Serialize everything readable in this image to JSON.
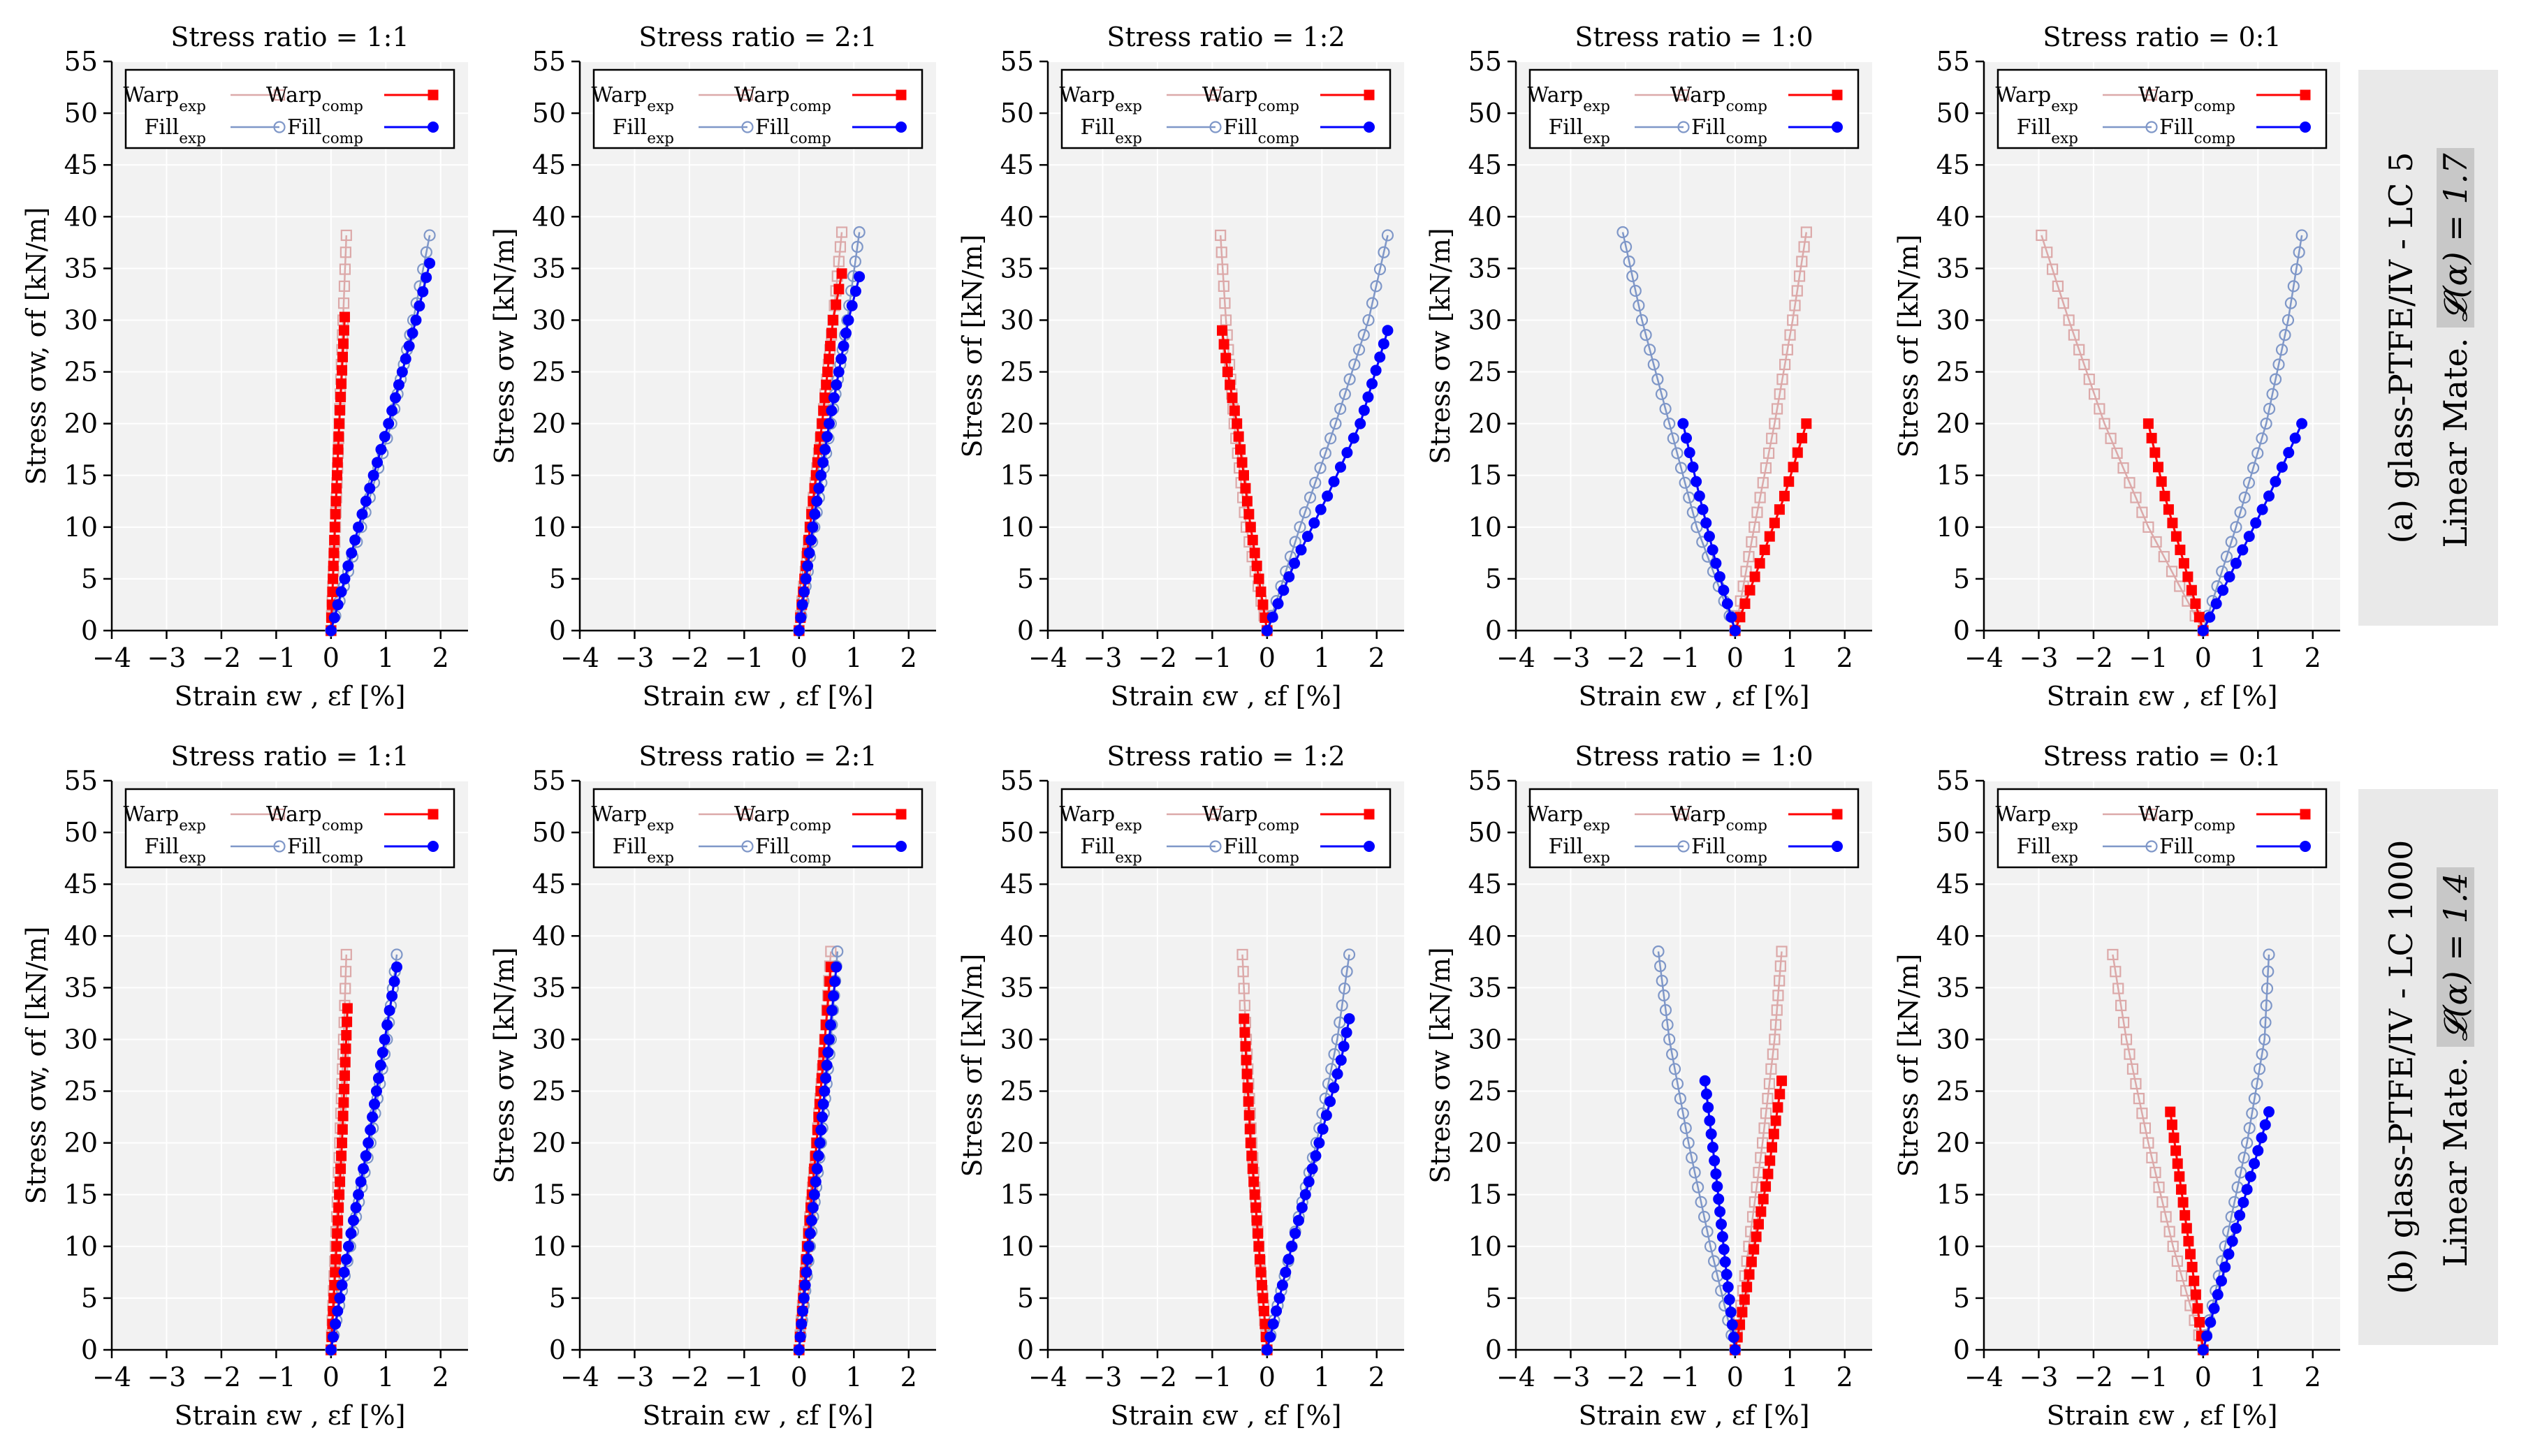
{
  "rows": [
    {
      "label_tag": "(a)",
      "label_material": "glass-PTFE/IV - LC 5",
      "label_model": "Linear Mate.",
      "label_metric": "𝓛(α) = 1.7",
      "label_line1": "(a) glass-PTFE/IV - LC 5",
      "ylabel_first": "Stress σw, σf [kN/m]"
    },
    {
      "label_tag": "(b)",
      "label_material": "glass-PTFE/IV - LC 1000",
      "label_model": "Linear Mate.",
      "label_metric": "𝓛(α) = 1.4",
      "label_line1": "(b) glass-PTFE/IV - LC 1000",
      "ylabel_first": "Stress σw, σf [kN/m]"
    }
  ],
  "legend": {
    "warp_exp": "Warp",
    "warp_exp_sub": "exp",
    "fill_exp": "Fill",
    "fill_exp_sub": "exp",
    "warp_comp": "Warp",
    "warp_comp_sub": "comp",
    "fill_comp": "Fill",
    "fill_comp_sub": "comp"
  },
  "colors": {
    "warp_exp": "#dca9a9",
    "fill_exp": "#7f97c8",
    "warp_comp": "#ff0000",
    "fill_comp": "#0000ff",
    "plot_bg": "#f2f2f2",
    "grid": "#ffffff"
  },
  "axes": {
    "xlim": [
      -4,
      2.5
    ],
    "ylim": [
      0,
      55
    ],
    "xticks": [
      -4,
      -3,
      -2,
      -1,
      0,
      1,
      2
    ],
    "yticks": [
      0,
      5,
      10,
      15,
      20,
      25,
      30,
      35,
      40,
      45,
      50,
      55
    ],
    "xlabel": "Strain εw , εf [%]",
    "grid": true,
    "legend_position": "top"
  },
  "chart_data": [
    {
      "type": "line",
      "row": 0,
      "col": 0,
      "title": "Stress ratio = 1:1",
      "ylabel": "Stress σw, σf [kN/m]",
      "series": [
        {
          "name": "Warp_exp",
          "x": [
            0,
            0.08,
            0.15,
            0.22,
            0.28
          ],
          "y": [
            0,
            10,
            20,
            30,
            38.2
          ]
        },
        {
          "name": "Fill_exp",
          "x": [
            0,
            0.55,
            1.1,
            1.5,
            1.8
          ],
          "y": [
            0,
            10,
            20,
            30,
            38.2
          ]
        },
        {
          "name": "Warp_comp",
          "x": [
            0,
            0.07,
            0.15,
            0.25
          ],
          "y": [
            0,
            10,
            20,
            30.3
          ]
        },
        {
          "name": "Fill_comp",
          "x": [
            0,
            0.5,
            1.05,
            1.55,
            1.8
          ],
          "y": [
            0,
            10,
            20,
            30,
            35.5
          ]
        }
      ]
    },
    {
      "type": "line",
      "row": 0,
      "col": 1,
      "title": "Stress ratio = 2:1",
      "ylabel": "Stress σw [kN/m]",
      "series": [
        {
          "name": "Warp_exp",
          "x": [
            0,
            0.2,
            0.42,
            0.62,
            0.78
          ],
          "y": [
            0,
            10,
            20,
            30,
            38.5
          ]
        },
        {
          "name": "Fill_exp",
          "x": [
            0,
            0.28,
            0.58,
            0.88,
            1.1
          ],
          "y": [
            0,
            10,
            20,
            30,
            38.5
          ]
        },
        {
          "name": "Warp_comp",
          "x": [
            0,
            0.2,
            0.42,
            0.62,
            0.78
          ],
          "y": [
            0,
            10,
            20,
            30,
            34.5
          ]
        },
        {
          "name": "Fill_comp",
          "x": [
            0,
            0.25,
            0.55,
            0.9,
            1.1
          ],
          "y": [
            0,
            10,
            20,
            30,
            34.2
          ]
        }
      ]
    },
    {
      "type": "line",
      "row": 0,
      "col": 2,
      "title": "Stress ratio = 1:2",
      "ylabel": "Stress σf [kN/m]",
      "series": [
        {
          "name": "Warp_exp",
          "x": [
            0,
            -0.38,
            -0.6,
            -0.75,
            -0.85
          ],
          "y": [
            0,
            10,
            20,
            30,
            38.2
          ]
        },
        {
          "name": "Fill_exp",
          "x": [
            0,
            0.6,
            1.25,
            1.85,
            2.2
          ],
          "y": [
            0,
            10,
            20,
            30,
            38.2
          ]
        },
        {
          "name": "Warp_comp",
          "x": [
            0,
            -0.3,
            -0.55,
            -0.72,
            -0.82
          ],
          "y": [
            0,
            10,
            20,
            25,
            29
          ]
        },
        {
          "name": "Fill_comp",
          "x": [
            0,
            0.5,
            1.1,
            1.7,
            2.2
          ],
          "y": [
            0,
            6.5,
            13,
            20,
            29
          ]
        }
      ]
    },
    {
      "type": "line",
      "row": 0,
      "col": 3,
      "title": "Stress ratio = 1:0",
      "ylabel": "Stress σw [kN/m]",
      "series": [
        {
          "name": "Warp_exp",
          "x": [
            0,
            0.35,
            0.72,
            1.05,
            1.3
          ],
          "y": [
            0,
            10,
            20,
            30,
            38.5
          ]
        },
        {
          "name": "Fill_exp",
          "x": [
            0,
            -0.7,
            -1.2,
            -1.7,
            -2.05
          ],
          "y": [
            0,
            10,
            20,
            30,
            38.5
          ]
        },
        {
          "name": "Warp_comp",
          "x": [
            0,
            0.45,
            0.9,
            1.3
          ],
          "y": [
            0,
            6.5,
            13,
            20
          ]
        },
        {
          "name": "Fill_comp",
          "x": [
            0,
            -0.35,
            -0.65,
            -0.95
          ],
          "y": [
            0,
            6.5,
            13,
            20
          ]
        }
      ]
    },
    {
      "type": "line",
      "row": 0,
      "col": 4,
      "title": "Stress ratio = 0:1",
      "ylabel": "Stress σf [kN/m]",
      "series": [
        {
          "name": "Warp_exp",
          "x": [
            0,
            -1.0,
            -1.8,
            -2.45,
            -2.95
          ],
          "y": [
            0,
            10,
            20,
            30,
            38.2
          ]
        },
        {
          "name": "Fill_exp",
          "x": [
            0,
            0.6,
            1.15,
            1.55,
            1.8
          ],
          "y": [
            0,
            10,
            20,
            30,
            38.2
          ]
        },
        {
          "name": "Warp_comp",
          "x": [
            0,
            -0.35,
            -0.7,
            -1.0
          ],
          "y": [
            0,
            6.5,
            13,
            20
          ]
        },
        {
          "name": "Fill_comp",
          "x": [
            0,
            0.6,
            1.2,
            1.8
          ],
          "y": [
            0,
            6.5,
            13,
            20
          ]
        }
      ]
    },
    {
      "type": "line",
      "row": 1,
      "col": 0,
      "title": "Stress ratio = 1:1",
      "ylabel": "Stress σw, σf [kN/m]",
      "series": [
        {
          "name": "Warp_exp",
          "x": [
            0,
            0.08,
            0.16,
            0.23,
            0.28
          ],
          "y": [
            0,
            10,
            20,
            30,
            38.2
          ]
        },
        {
          "name": "Fill_exp",
          "x": [
            0,
            0.35,
            0.72,
            1.02,
            1.2
          ],
          "y": [
            0,
            10,
            20,
            30,
            38.2
          ]
        },
        {
          "name": "Warp_comp",
          "x": [
            0,
            0.1,
            0.2,
            0.3
          ],
          "y": [
            0,
            10,
            20,
            33
          ]
        },
        {
          "name": "Fill_comp",
          "x": [
            0,
            0.32,
            0.68,
            0.98,
            1.2
          ],
          "y": [
            0,
            10,
            20,
            30,
            37
          ]
        }
      ]
    },
    {
      "type": "line",
      "row": 1,
      "col": 1,
      "title": "Stress ratio = 2:1",
      "ylabel": "Stress σw [kN/m]",
      "series": [
        {
          "name": "Warp_exp",
          "x": [
            0,
            0.15,
            0.32,
            0.47,
            0.58
          ],
          "y": [
            0,
            10,
            20,
            30,
            38.5
          ]
        },
        {
          "name": "Fill_exp",
          "x": [
            0,
            0.2,
            0.4,
            0.58,
            0.7
          ],
          "y": [
            0,
            10,
            20,
            30,
            38.5
          ]
        },
        {
          "name": "Warp_comp",
          "x": [
            0,
            0.15,
            0.32,
            0.47,
            0.58
          ],
          "y": [
            0,
            10,
            20,
            30,
            37
          ]
        },
        {
          "name": "Fill_comp",
          "x": [
            0,
            0.18,
            0.38,
            0.55,
            0.68
          ],
          "y": [
            0,
            10,
            20,
            30,
            37
          ]
        }
      ]
    },
    {
      "type": "line",
      "row": 1,
      "col": 2,
      "title": "Stress ratio = 1:2",
      "ylabel": "Stress σf [kN/m]",
      "series": [
        {
          "name": "Warp_exp",
          "x": [
            0,
            -0.15,
            -0.28,
            -0.38,
            -0.45
          ],
          "y": [
            0,
            10,
            20,
            30,
            38.2
          ]
        },
        {
          "name": "Fill_exp",
          "x": [
            0,
            0.45,
            0.9,
            1.28,
            1.5
          ],
          "y": [
            0,
            10,
            20,
            30,
            38.2
          ]
        },
        {
          "name": "Warp_comp",
          "x": [
            0,
            -0.15,
            -0.3,
            -0.42
          ],
          "y": [
            0,
            10,
            20,
            32
          ]
        },
        {
          "name": "Fill_comp",
          "x": [
            0,
            0.45,
            0.95,
            1.35,
            1.5
          ],
          "y": [
            0,
            10,
            20,
            28,
            32
          ]
        }
      ]
    },
    {
      "type": "line",
      "row": 1,
      "col": 3,
      "title": "Stress ratio = 1:0",
      "ylabel": "Stress σw [kN/m]",
      "series": [
        {
          "name": "Warp_exp",
          "x": [
            0,
            0.25,
            0.5,
            0.72,
            0.85
          ],
          "y": [
            0,
            10,
            20,
            30,
            38.5
          ]
        },
        {
          "name": "Fill_exp",
          "x": [
            0,
            -0.45,
            -0.85,
            -1.2,
            -1.4
          ],
          "y": [
            0,
            10,
            20,
            30,
            38.5
          ]
        },
        {
          "name": "Warp_comp",
          "x": [
            0,
            0.3,
            0.6,
            0.85
          ],
          "y": [
            0,
            8.5,
            17,
            26
          ]
        },
        {
          "name": "Fill_comp",
          "x": [
            0,
            -0.18,
            -0.35,
            -0.55
          ],
          "y": [
            0,
            8.5,
            17,
            26
          ]
        }
      ]
    },
    {
      "type": "line",
      "row": 1,
      "col": 4,
      "title": "Stress ratio = 0:1",
      "ylabel": "Stress σf [kN/m]",
      "series": [
        {
          "name": "Warp_exp",
          "x": [
            0,
            -0.55,
            -1.0,
            -1.4,
            -1.65
          ],
          "y": [
            0,
            10,
            20,
            30,
            38.2
          ]
        },
        {
          "name": "Fill_exp",
          "x": [
            0,
            0.4,
            0.8,
            1.12,
            1.2
          ],
          "y": [
            0,
            10,
            20,
            30,
            38.2
          ]
        },
        {
          "name": "Warp_comp",
          "x": [
            0,
            -0.2,
            -0.4,
            -0.6
          ],
          "y": [
            0,
            8,
            15.5,
            23
          ]
        },
        {
          "name": "Fill_comp",
          "x": [
            0,
            0.4,
            0.8,
            1.2
          ],
          "y": [
            0,
            8,
            15.5,
            23
          ]
        }
      ]
    }
  ]
}
